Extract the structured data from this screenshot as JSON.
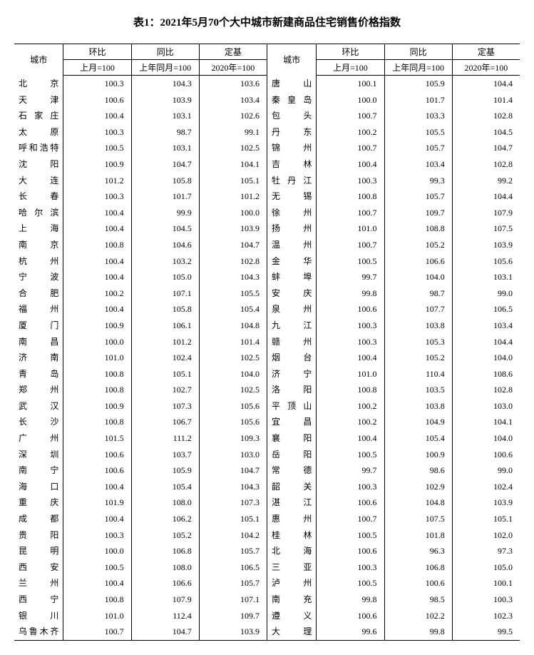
{
  "title": "表1：2021年5月70个大中城市新建商品住宅销售价格指数",
  "headers": {
    "city": "城市",
    "mom": "环比",
    "yoy": "同比",
    "base": "定基",
    "mom_sub": "上月=100",
    "yoy_sub": "上年同月=100",
    "base_sub": "2020年=100"
  },
  "rows": [
    {
      "c1": "北京",
      "v1": "100.3",
      "v2": "104.3",
      "v3": "103.6",
      "c2": "唐山",
      "u1": "100.1",
      "u2": "105.9",
      "u3": "104.4"
    },
    {
      "c1": "天津",
      "v1": "100.6",
      "v2": "103.9",
      "v3": "103.4",
      "c2": "秦皇岛",
      "u1": "100.0",
      "u2": "101.7",
      "u3": "101.4"
    },
    {
      "c1": "石家庄",
      "v1": "100.4",
      "v2": "103.1",
      "v3": "102.6",
      "c2": "包头",
      "u1": "100.7",
      "u2": "103.3",
      "u3": "102.8"
    },
    {
      "c1": "太原",
      "v1": "100.3",
      "v2": "98.7",
      "v3": "99.1",
      "c2": "丹东",
      "u1": "100.2",
      "u2": "105.5",
      "u3": "104.5"
    },
    {
      "c1": "呼和浩特",
      "v1": "100.5",
      "v2": "103.1",
      "v3": "102.5",
      "c2": "锦州",
      "u1": "100.7",
      "u2": "105.7",
      "u3": "104.7"
    },
    {
      "c1": "沈阳",
      "v1": "100.9",
      "v2": "104.7",
      "v3": "104.1",
      "c2": "吉林",
      "u1": "100.4",
      "u2": "103.4",
      "u3": "102.8"
    },
    {
      "c1": "大连",
      "v1": "101.2",
      "v2": "105.8",
      "v3": "105.1",
      "c2": "牡丹江",
      "u1": "100.3",
      "u2": "99.3",
      "u3": "99.2"
    },
    {
      "c1": "长春",
      "v1": "100.3",
      "v2": "101.7",
      "v3": "101.2",
      "c2": "无锡",
      "u1": "100.8",
      "u2": "105.7",
      "u3": "104.4"
    },
    {
      "c1": "哈尔滨",
      "v1": "100.4",
      "v2": "99.9",
      "v3": "100.0",
      "c2": "徐州",
      "u1": "100.7",
      "u2": "109.7",
      "u3": "107.9"
    },
    {
      "c1": "上海",
      "v1": "100.4",
      "v2": "104.5",
      "v3": "103.9",
      "c2": "扬州",
      "u1": "101.0",
      "u2": "108.8",
      "u3": "107.5"
    },
    {
      "c1": "南京",
      "v1": "100.8",
      "v2": "104.6",
      "v3": "104.7",
      "c2": "温州",
      "u1": "100.7",
      "u2": "105.2",
      "u3": "103.9"
    },
    {
      "c1": "杭州",
      "v1": "100.4",
      "v2": "103.2",
      "v3": "102.8",
      "c2": "金华",
      "u1": "100.5",
      "u2": "106.6",
      "u3": "105.6"
    },
    {
      "c1": "宁波",
      "v1": "100.4",
      "v2": "105.0",
      "v3": "104.3",
      "c2": "蚌埠",
      "u1": "99.7",
      "u2": "104.0",
      "u3": "103.1"
    },
    {
      "c1": "合肥",
      "v1": "100.2",
      "v2": "107.1",
      "v3": "105.5",
      "c2": "安庆",
      "u1": "99.8",
      "u2": "98.7",
      "u3": "99.0"
    },
    {
      "c1": "福州",
      "v1": "100.4",
      "v2": "105.8",
      "v3": "105.4",
      "c2": "泉州",
      "u1": "100.6",
      "u2": "107.7",
      "u3": "106.5"
    },
    {
      "c1": "厦门",
      "v1": "100.9",
      "v2": "106.1",
      "v3": "104.8",
      "c2": "九江",
      "u1": "100.3",
      "u2": "103.8",
      "u3": "103.4"
    },
    {
      "c1": "南昌",
      "v1": "100.0",
      "v2": "101.2",
      "v3": "101.4",
      "c2": "赣州",
      "u1": "100.3",
      "u2": "105.3",
      "u3": "104.4"
    },
    {
      "c1": "济南",
      "v1": "101.0",
      "v2": "102.4",
      "v3": "102.5",
      "c2": "烟台",
      "u1": "100.4",
      "u2": "105.2",
      "u3": "104.0"
    },
    {
      "c1": "青岛",
      "v1": "100.8",
      "v2": "105.1",
      "v3": "104.0",
      "c2": "济宁",
      "u1": "101.0",
      "u2": "110.4",
      "u3": "108.6"
    },
    {
      "c1": "郑州",
      "v1": "100.8",
      "v2": "102.7",
      "v3": "102.5",
      "c2": "洛阳",
      "u1": "100.8",
      "u2": "103.5",
      "u3": "102.8"
    },
    {
      "c1": "武汉",
      "v1": "100.9",
      "v2": "107.3",
      "v3": "105.6",
      "c2": "平顶山",
      "u1": "100.2",
      "u2": "103.8",
      "u3": "103.0"
    },
    {
      "c1": "长沙",
      "v1": "100.8",
      "v2": "106.7",
      "v3": "105.6",
      "c2": "宜昌",
      "u1": "100.2",
      "u2": "104.9",
      "u3": "104.1"
    },
    {
      "c1": "广州",
      "v1": "101.5",
      "v2": "111.2",
      "v3": "109.3",
      "c2": "襄阳",
      "u1": "100.4",
      "u2": "105.4",
      "u3": "104.0"
    },
    {
      "c1": "深圳",
      "v1": "100.6",
      "v2": "103.7",
      "v3": "103.0",
      "c2": "岳阳",
      "u1": "100.5",
      "u2": "100.9",
      "u3": "100.6"
    },
    {
      "c1": "南宁",
      "v1": "100.6",
      "v2": "105.9",
      "v3": "104.7",
      "c2": "常德",
      "u1": "99.7",
      "u2": "98.6",
      "u3": "99.0"
    },
    {
      "c1": "海口",
      "v1": "100.4",
      "v2": "105.4",
      "v3": "104.3",
      "c2": "韶关",
      "u1": "100.3",
      "u2": "102.9",
      "u3": "102.4"
    },
    {
      "c1": "重庆",
      "v1": "101.9",
      "v2": "108.0",
      "v3": "107.3",
      "c2": "湛江",
      "u1": "100.6",
      "u2": "104.8",
      "u3": "103.9"
    },
    {
      "c1": "成都",
      "v1": "100.4",
      "v2": "106.2",
      "v3": "105.1",
      "c2": "惠州",
      "u1": "100.7",
      "u2": "107.5",
      "u3": "105.1"
    },
    {
      "c1": "贵阳",
      "v1": "100.3",
      "v2": "105.2",
      "v3": "104.2",
      "c2": "桂林",
      "u1": "100.5",
      "u2": "101.8",
      "u3": "102.0"
    },
    {
      "c1": "昆明",
      "v1": "100.0",
      "v2": "106.8",
      "v3": "105.7",
      "c2": "北海",
      "u1": "100.6",
      "u2": "96.3",
      "u3": "97.3"
    },
    {
      "c1": "西安",
      "v1": "100.5",
      "v2": "108.0",
      "v3": "106.5",
      "c2": "三亚",
      "u1": "100.3",
      "u2": "106.8",
      "u3": "105.0"
    },
    {
      "c1": "兰州",
      "v1": "100.4",
      "v2": "106.6",
      "v3": "105.7",
      "c2": "泸州",
      "u1": "100.5",
      "u2": "100.6",
      "u3": "100.1"
    },
    {
      "c1": "西宁",
      "v1": "100.8",
      "v2": "107.9",
      "v3": "107.1",
      "c2": "南充",
      "u1": "99.8",
      "u2": "98.5",
      "u3": "100.3"
    },
    {
      "c1": "银川",
      "v1": "101.0",
      "v2": "112.4",
      "v3": "109.7",
      "c2": "遵义",
      "u1": "100.6",
      "u2": "102.2",
      "u3": "102.3"
    },
    {
      "c1": "乌鲁木齐",
      "v1": "100.7",
      "v2": "104.7",
      "v3": "103.9",
      "c2": "大理",
      "u1": "99.6",
      "u2": "99.8",
      "u3": "99.5"
    }
  ]
}
